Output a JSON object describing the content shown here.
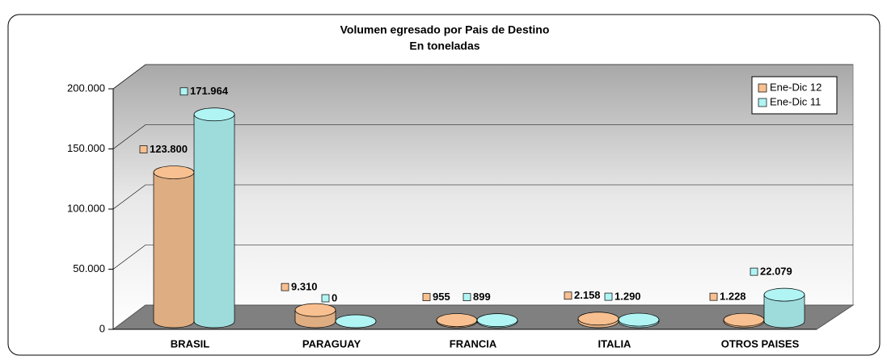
{
  "chart_data": {
    "type": "cylinder",
    "title": "Volumen egresado por Pais de Destino",
    "subtitle": "En toneladas",
    "categories": [
      "BRASIL",
      "PARAGUAY",
      "FRANCIA",
      "ITALIA",
      "OTROS PAISES"
    ],
    "series": [
      {
        "name": "Ene-Dic 12",
        "color": "#f8c090",
        "values": [
          123800,
          9310,
          955,
          2158,
          1228
        ],
        "value_labels": [
          "123.800",
          "9.310",
          "955",
          "2.158",
          "1.228"
        ]
      },
      {
        "name": "Ene-Dic 11",
        "color": "#b0f4f4",
        "values": [
          171964,
          0,
          899,
          1290,
          22079
        ],
        "value_labels": [
          "171.964",
          "0",
          "899",
          "1.290",
          "22.079"
        ]
      }
    ],
    "ylim": [
      0,
      200000
    ],
    "yticks": [
      {
        "value": 0,
        "label": "0"
      },
      {
        "value": 50000,
        "label": "50.000"
      },
      {
        "value": 100000,
        "label": "100.000"
      },
      {
        "value": 150000,
        "label": "150.000"
      },
      {
        "value": 200000,
        "label": "200.000"
      }
    ],
    "grid": true,
    "legend": "top-right"
  }
}
